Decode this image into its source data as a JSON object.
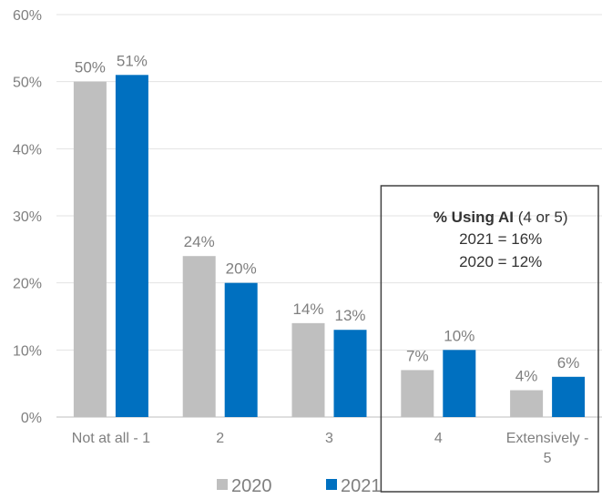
{
  "chart_data": {
    "type": "bar",
    "categories": [
      "Not at all - 1",
      "2",
      "3",
      "4",
      "Extensively - 5"
    ],
    "series": [
      {
        "name": "2020",
        "values": [
          50,
          24,
          14,
          7,
          4
        ],
        "labels": [
          "50%",
          "24%",
          "14%",
          "7%",
          "4%"
        ],
        "color": "#bfbfbf"
      },
      {
        "name": "2021",
        "values": [
          51,
          20,
          13,
          10,
          6
        ],
        "labels": [
          "51%",
          "20%",
          "13%",
          "10%",
          "6%"
        ],
        "color": "#0070c0"
      }
    ],
    "ylim": [
      0,
      60
    ],
    "yticks": [
      "0%",
      "10%",
      "20%",
      "30%",
      "40%",
      "50%",
      "60%"
    ],
    "grid": true,
    "legend": "bottom-center",
    "annotation": {
      "title_bold": "% Using AI",
      "title_rest": " (4 or 5)",
      "line1": "2021 = 16%",
      "line2": "2020 = 12%",
      "highlight": [
        "4",
        "Extensively - 5"
      ]
    }
  }
}
